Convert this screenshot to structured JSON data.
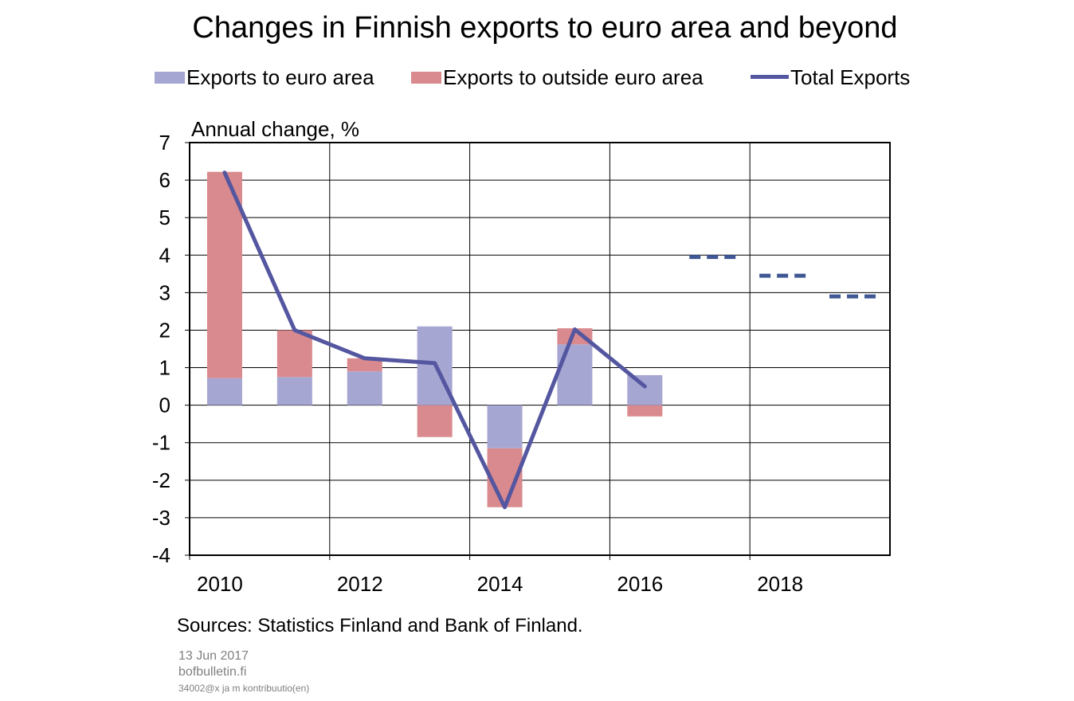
{
  "chart_data": {
    "type": "bar",
    "title": "Changes in Finnish exports to euro area and beyond",
    "ylabel": "Annual change, %",
    "ylim": [
      -4,
      7
    ],
    "yticks": [
      "7",
      "6",
      "5",
      "4",
      "3",
      "2",
      "1",
      "0",
      "-1",
      "-2",
      "-3",
      "-4"
    ],
    "xlim": [
      2010,
      2020
    ],
    "xticks": [
      "2010",
      "2012",
      "2014",
      "2016",
      "2018"
    ],
    "grid": true,
    "legend_position": "top",
    "categories": [
      "2010",
      "2011",
      "2012",
      "2013",
      "2014",
      "2015",
      "2016"
    ],
    "series": [
      {
        "name": "Exports to euro area",
        "kind": "bar",
        "color": "#a6a6d2",
        "values": [
          0.72,
          0.75,
          0.9,
          2.1,
          -1.15,
          1.62,
          0.8
        ]
      },
      {
        "name": "Exports to outside euro area",
        "kind": "bar",
        "color": "#d98a8e",
        "values": [
          5.5,
          1.25,
          0.35,
          -0.85,
          -1.57,
          0.43,
          -0.3
        ]
      },
      {
        "name": "Total Exports",
        "kind": "line",
        "color": "#5456a0",
        "x": [
          2010,
          2011,
          2012,
          2013,
          2014,
          2015,
          2016
        ],
        "values": [
          6.2,
          2.0,
          1.25,
          1.12,
          -2.72,
          2.02,
          0.5
        ]
      }
    ],
    "forecast_color": "#3f5794",
    "forecast": [
      {
        "year": "2017",
        "value": 3.95
      },
      {
        "year": "2018",
        "value": 3.45
      },
      {
        "year": "2019",
        "value": 2.9
      }
    ]
  },
  "legend": {
    "euro_label": "Exports to euro area",
    "outside_label": "Exports to outside euro area",
    "total_label": "Total Exports"
  },
  "source": "Sources: Statistics Finland and Bank of Finland.",
  "footer": {
    "date": "13 Jun 2017",
    "site": "bofbulletin.fi",
    "code": "34002@x ja m kontribuutio(en)"
  }
}
